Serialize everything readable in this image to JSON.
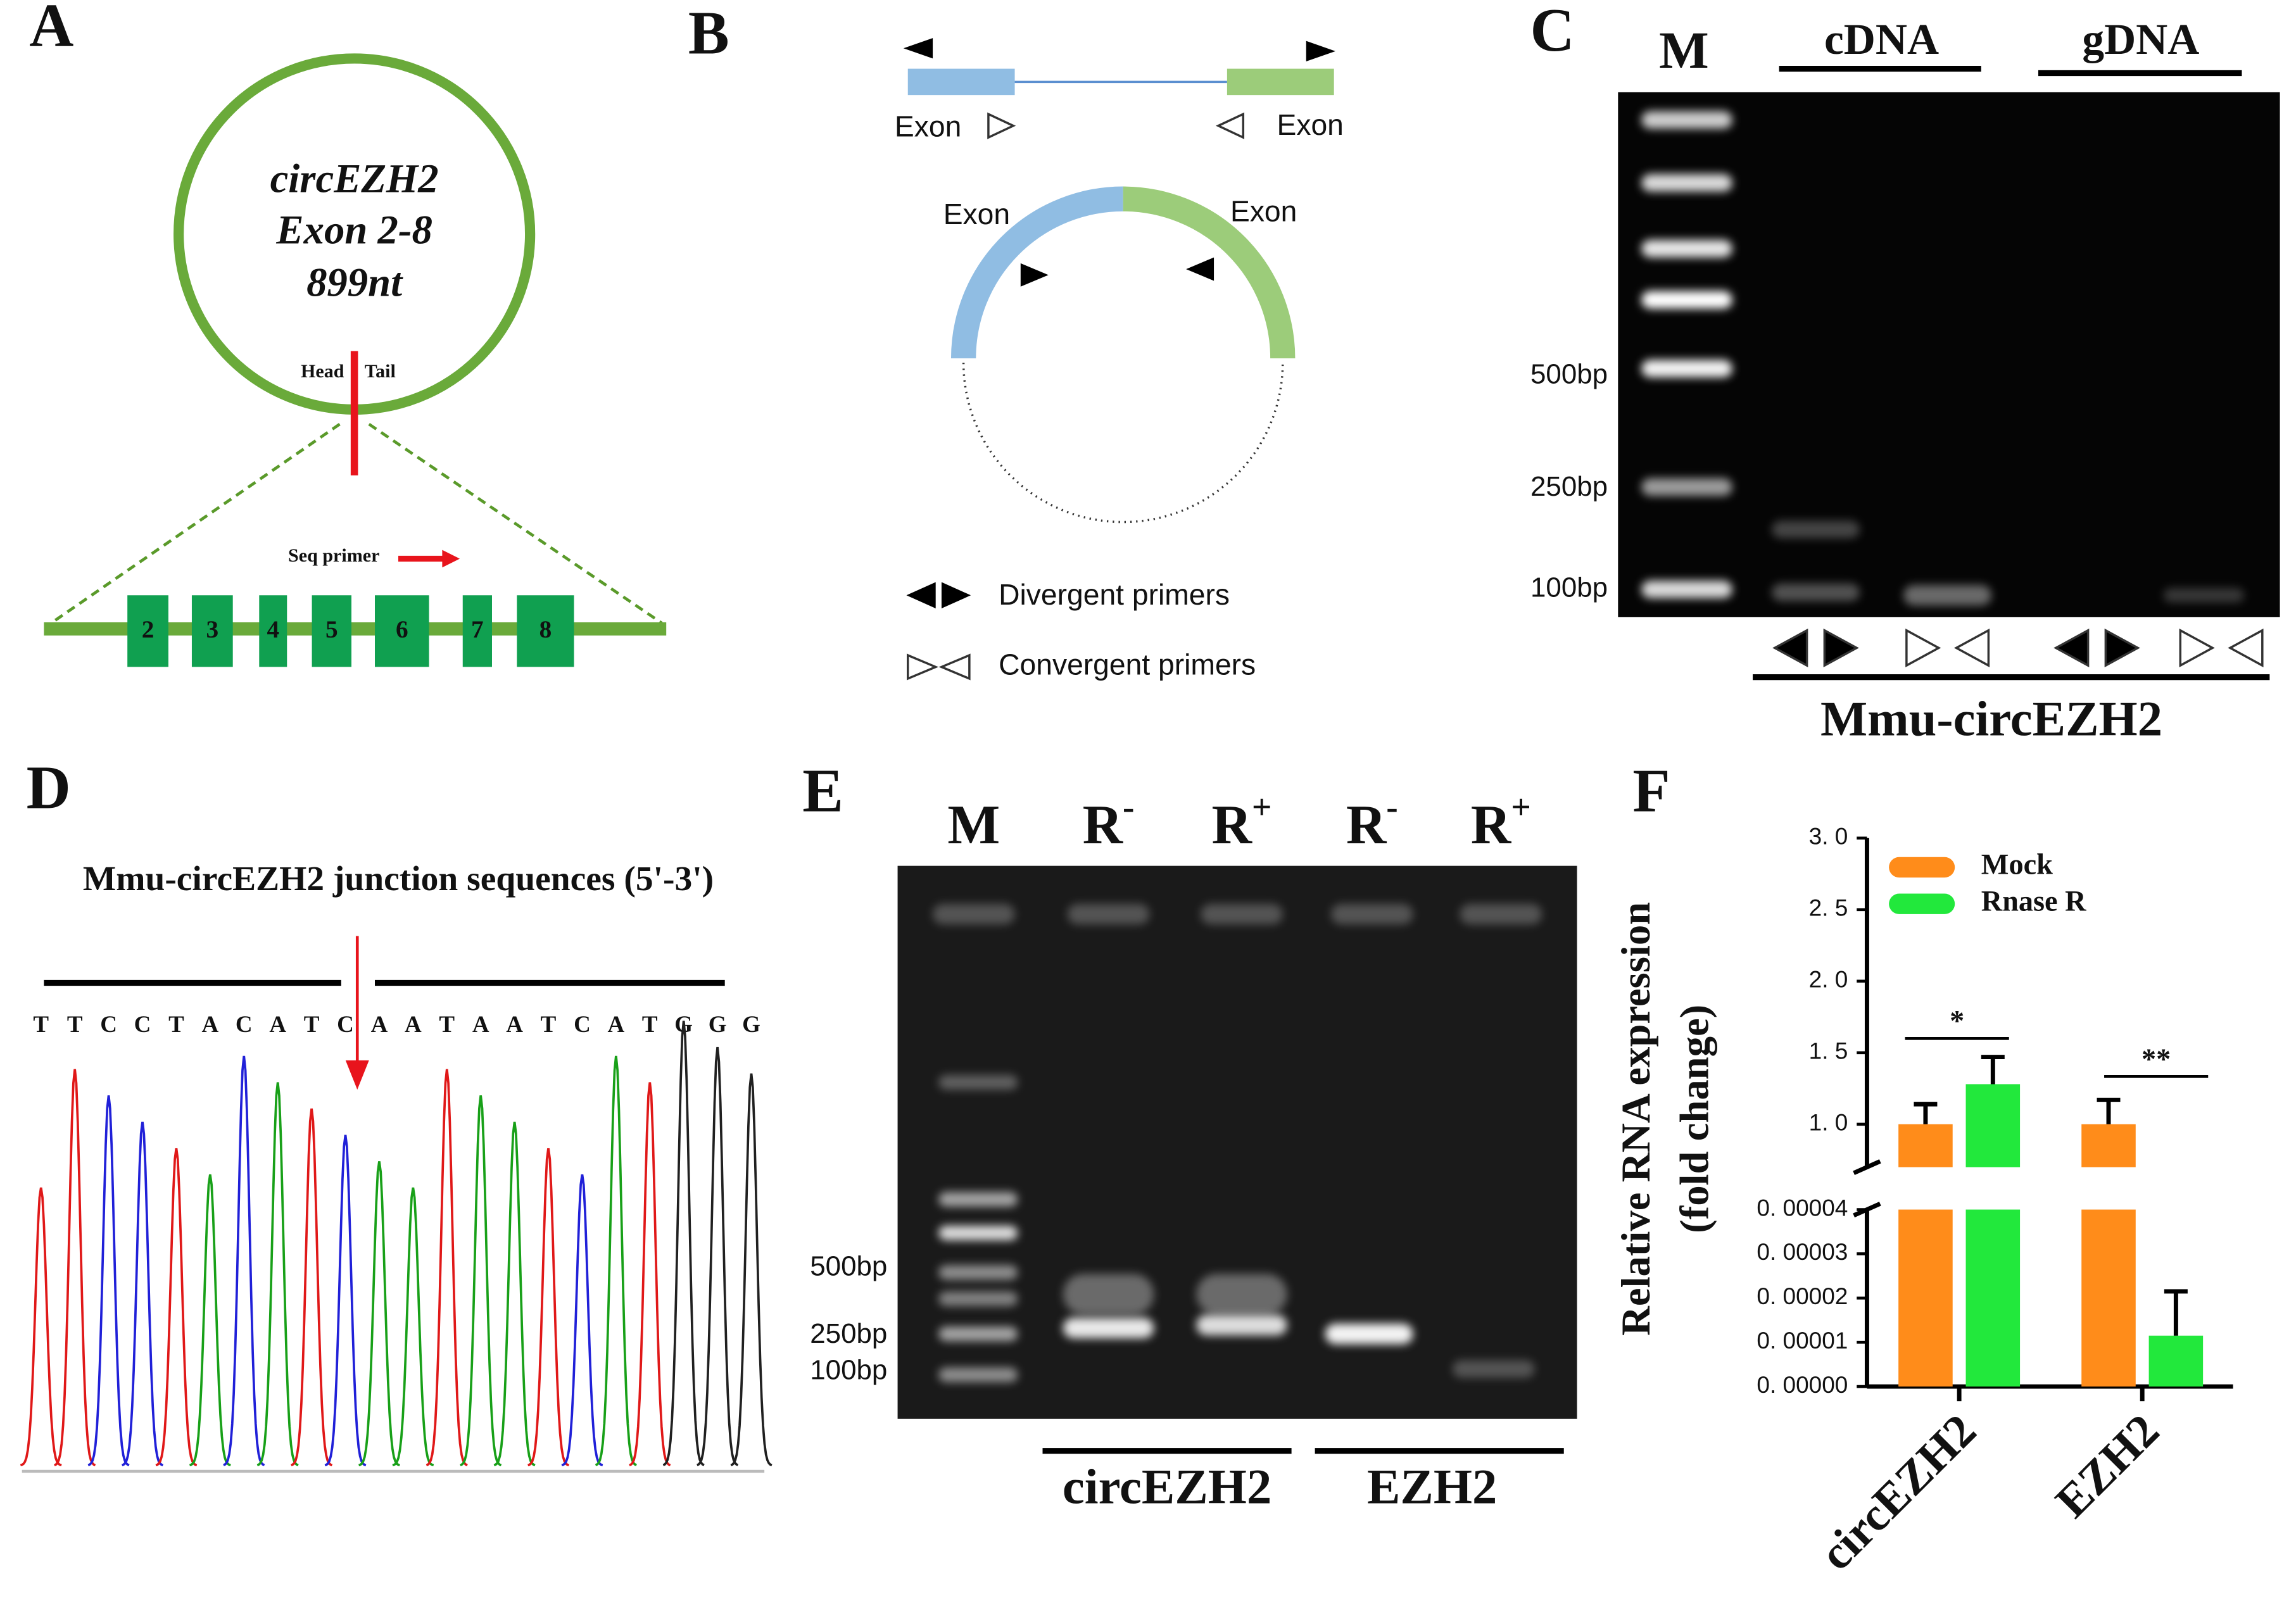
{
  "panel_A": {
    "label": "A",
    "circle_lines": [
      "circEZH2",
      "Exon 2-8",
      "899nt"
    ],
    "head": "Head",
    "tail": "Tail",
    "seq_primer": "Seq primer",
    "exons": [
      "2",
      "3",
      "4",
      "5",
      "6",
      "7",
      "8"
    ]
  },
  "panel_B": {
    "label": "B",
    "linear_left": "Exon",
    "linear_right": "Exon",
    "circle_left": "Exon",
    "circle_right": "Exon",
    "legend": [
      "Divergent primers",
      "Convergent primers"
    ]
  },
  "panel_C": {
    "label": "C",
    "marker": "M",
    "groups": [
      "cDNA",
      "gDNA"
    ],
    "sizes": [
      "500bp",
      "250bp",
      "100bp"
    ],
    "target": "Mmu-circEZH2"
  },
  "panel_D": {
    "label": "D",
    "title": "Mmu-circEZH2 junction sequences (5'-3')",
    "sequence": [
      "T",
      "T",
      "C",
      "C",
      "T",
      "A",
      "C",
      "A",
      "T",
      "C",
      "A",
      "A",
      "T",
      "A",
      "A",
      "T",
      "C",
      "A",
      "T",
      "G",
      "G",
      "G"
    ],
    "base_colors": {
      "A": "#18a018",
      "C": "#2020d8",
      "G": "#202020",
      "T": "#e01818"
    }
  },
  "panel_E": {
    "label": "E",
    "lanes": [
      {
        "text": "M"
      },
      {
        "text": "R",
        "sup": "-"
      },
      {
        "text": "R",
        "sup": "+"
      },
      {
        "text": "R",
        "sup": "-"
      },
      {
        "text": "R",
        "sup": "+"
      }
    ],
    "sizes": [
      "500bp",
      "250bp",
      "100bp"
    ],
    "groups": [
      "circEZH2",
      "EZH2"
    ]
  },
  "chart_data": {
    "type": "bar",
    "label": "F",
    "ylabel": [
      "Relative RNA expression",
      "(fold change)"
    ],
    "categories": [
      "circEZH2",
      "EZH2"
    ],
    "series": [
      {
        "name": "Mock",
        "color": "#ff8c1a",
        "values": [
          1.0,
          1.0
        ],
        "errors": [
          0.14,
          0.17
        ]
      },
      {
        "name": "Rnase R",
        "color": "#22e83c",
        "values": [
          1.28,
          1.15e-05
        ],
        "errors": [
          0.19,
          1e-05
        ]
      }
    ],
    "axis_segments": [
      {
        "ylim": [
          0,
          4e-05
        ],
        "yticks": [
          {
            "value": 0,
            "label": "0. 00000"
          },
          {
            "value": 1e-05,
            "label": "0. 00001"
          },
          {
            "value": 2e-05,
            "label": "0. 00002"
          },
          {
            "value": 3e-05,
            "label": "0. 00003"
          },
          {
            "value": 4e-05,
            "label": "0. 00004"
          }
        ]
      },
      {
        "ylim": [
          0.7,
          3.0
        ],
        "yticks": [
          {
            "value": 1.0,
            "label": "1. 0"
          },
          {
            "value": 1.5,
            "label": "1. 5"
          },
          {
            "value": 2.0,
            "label": "2. 0"
          },
          {
            "value": 2.5,
            "label": "2. 5"
          },
          {
            "value": 3.0,
            "label": "3. 0"
          }
        ]
      }
    ],
    "legend": "upper left",
    "annotations": [
      "*",
      "**"
    ]
  }
}
